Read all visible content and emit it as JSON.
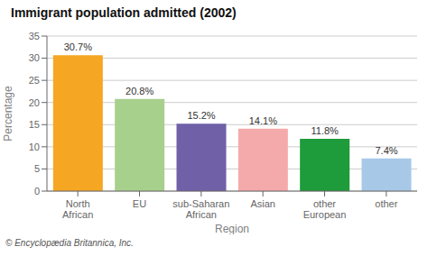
{
  "chart_data": {
    "type": "bar",
    "title": "Immigrant population admitted (2002)",
    "categories": [
      "North\nAfrican",
      "EU",
      "sub-Saharan\nAfrican",
      "Asian",
      "other\nEuropean",
      "other"
    ],
    "values": [
      30.7,
      20.8,
      15.2,
      14.1,
      11.8,
      7.4
    ],
    "value_labels": [
      "30.7%",
      "20.8%",
      "15.2%",
      "14.1%",
      "11.8%",
      "7.4%"
    ],
    "data_labels": true,
    "colors": [
      "#F5A623",
      "#A8D08D",
      "#7060A8",
      "#F4AAAA",
      "#1E9B3A",
      "#A8C8E8"
    ],
    "xlabel": "Region",
    "ylabel": "Percentage",
    "ylim": [
      0,
      35
    ],
    "yticks": [
      0,
      5,
      10,
      15,
      20,
      25,
      30,
      35
    ],
    "grid": true,
    "annotations": [
      "© Encyclopædia Britannica, Inc."
    ]
  }
}
